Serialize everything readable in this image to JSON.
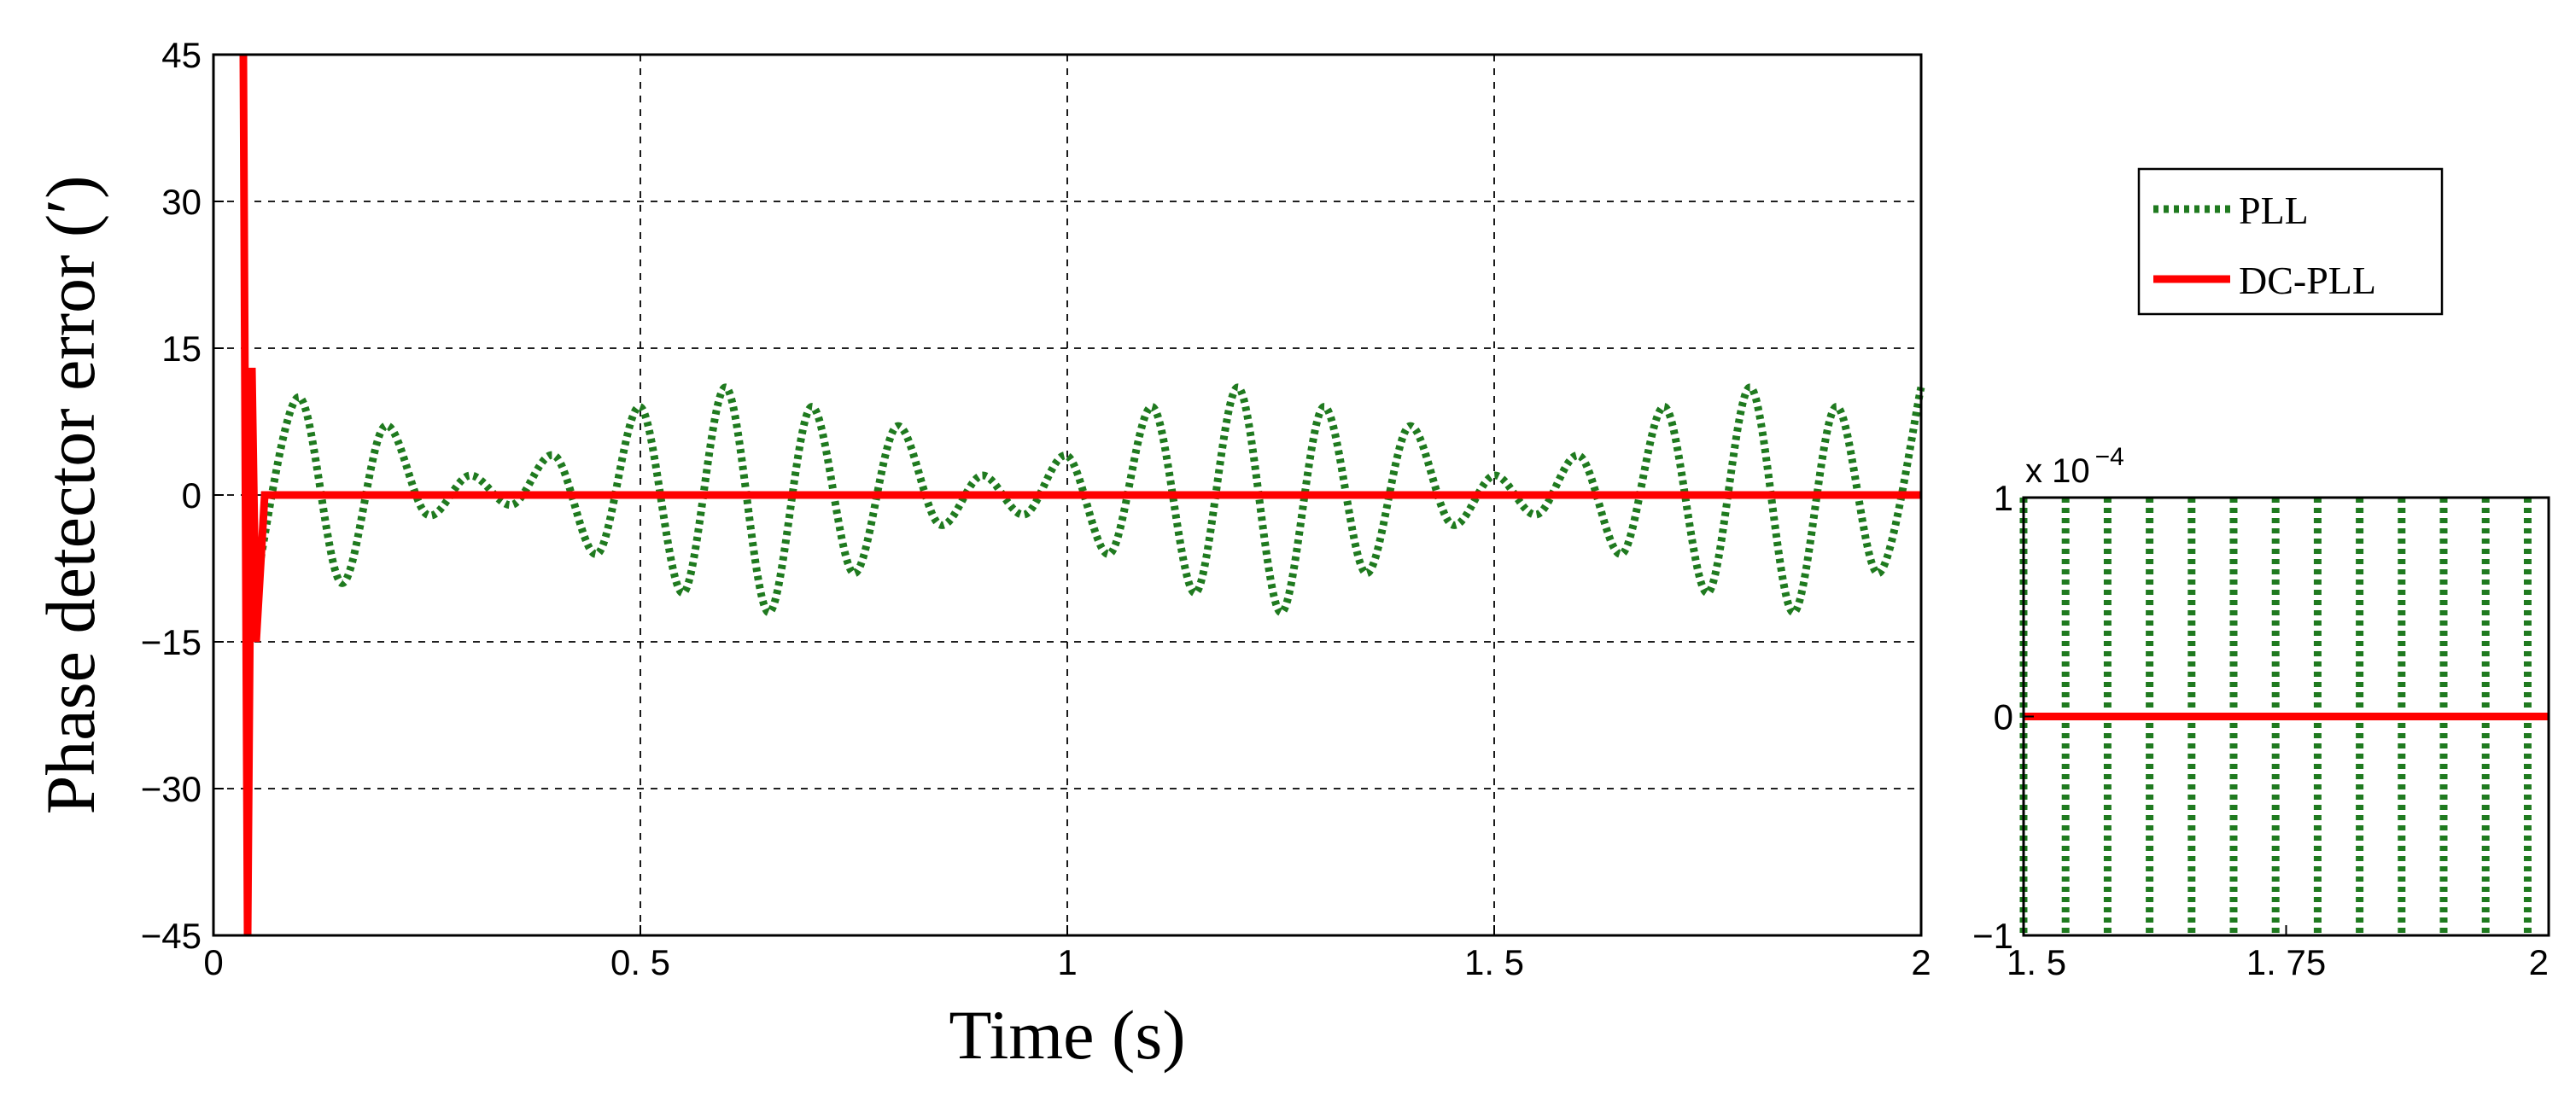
{
  "chart_data": [
    {
      "type": "line",
      "xlabel": "Time (s)",
      "ylabel": "Phase detector error (′)",
      "xlim": [
        0,
        2
      ],
      "ylim": [
        -45,
        45
      ],
      "xticks": [
        0,
        0.5,
        1,
        1.5,
        2
      ],
      "xtick_labels": [
        "0",
        "0. 5",
        "1",
        "1. 5",
        "2"
      ],
      "yticks": [
        -45,
        -30,
        -15,
        0,
        15,
        30,
        45
      ],
      "ytick_labels": [
        "−45",
        "−30",
        "−15",
        "0",
        "15",
        "30",
        "45"
      ],
      "grid": true,
      "legend_position": "right",
      "series": [
        {
          "name": "PLL",
          "color": "#1f7a1f",
          "style": "dotted",
          "x": [
            0.05,
            0.1,
            0.15,
            0.2,
            0.25,
            0.3,
            0.35,
            0.4,
            0.45,
            0.5,
            0.55,
            0.6,
            0.65,
            0.7,
            0.75,
            0.8,
            0.85,
            0.9,
            0.95,
            1.0,
            1.05,
            1.1,
            1.15,
            1.2,
            1.25,
            1.3,
            1.35,
            1.4,
            1.45,
            1.5,
            1.55,
            1.6,
            1.65,
            1.7,
            1.75,
            1.8,
            1.85,
            1.9,
            1.95,
            2.0
          ],
          "y": [
            -9,
            10,
            -9,
            7,
            -2,
            2,
            -1,
            4,
            -6,
            9,
            -10,
            11,
            -12,
            9,
            -8,
            7,
            -3,
            2,
            -2,
            4,
            -6,
            9,
            -10,
            11,
            -12,
            9,
            -8,
            7,
            -3,
            2,
            -2,
            4,
            -6,
            9,
            -10,
            11,
            -12,
            9,
            -8,
            11
          ]
        },
        {
          "name": "DC-PLL",
          "color": "#ff0000",
          "style": "solid",
          "x": [
            0.035,
            0.04,
            0.045,
            0.05,
            0.06,
            2.0
          ],
          "y": [
            45,
            -45,
            13,
            -15,
            0,
            0
          ]
        }
      ]
    },
    {
      "type": "line",
      "xlim": [
        1.5,
        2
      ],
      "ylim": [
        -1,
        1
      ],
      "xticks": [
        1.5,
        1.75,
        2
      ],
      "xtick_labels": [
        "1. 5",
        "1. 75",
        "2"
      ],
      "yticks": [
        -1,
        0,
        1
      ],
      "ytick_labels": [
        "−1",
        "0",
        "1"
      ],
      "y_scale_factor": "x 10",
      "y_scale_exponent": "−4",
      "series": [
        {
          "name": "PLL",
          "color": "#1f7a1f",
          "style": "dotted",
          "vertical_lines_x": [
            1.5,
            1.54,
            1.58,
            1.62,
            1.66,
            1.7,
            1.74,
            1.78,
            1.82,
            1.86,
            1.9,
            1.94,
            1.98
          ]
        },
        {
          "name": "DC-PLL",
          "color": "#ff0000",
          "style": "solid",
          "x": [
            1.5,
            2.0
          ],
          "y": [
            0,
            0
          ]
        }
      ]
    }
  ],
  "legend": {
    "items": [
      {
        "label": "PLL",
        "color": "#1f7a1f",
        "style": "dotted"
      },
      {
        "label": "DC-PLL",
        "color": "#ff0000",
        "style": "solid"
      }
    ]
  }
}
